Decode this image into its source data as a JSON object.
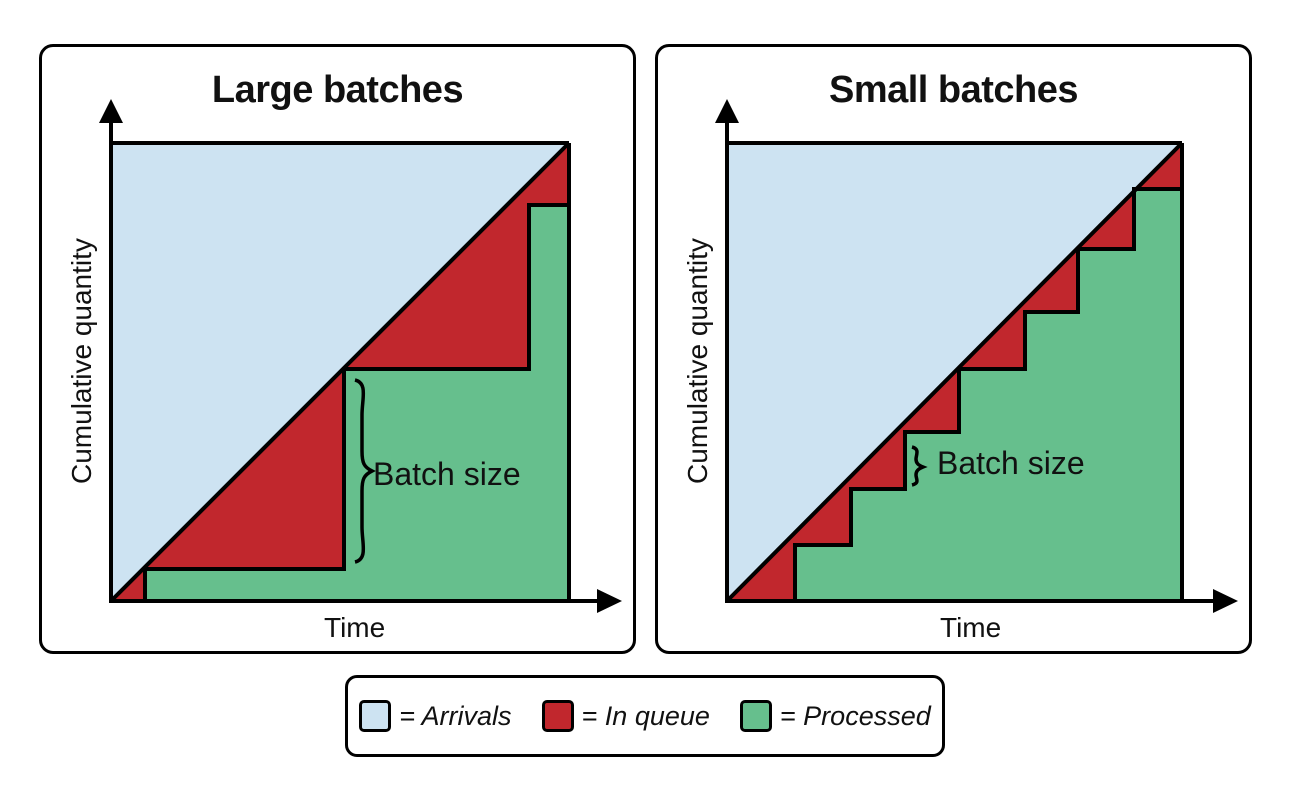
{
  "colors": {
    "arrivals": "#cde3f2",
    "in_queue": "#c1272d",
    "processed": "#66bf8d",
    "stroke": "#000000"
  },
  "panels": {
    "left": {
      "title": "Large batches",
      "xlabel": "Time",
      "ylabel": "Cumulative quantity",
      "annotation": "Batch size"
    },
    "right": {
      "title": "Small batches",
      "xlabel": "Time",
      "ylabel": "Cumulative quantity",
      "annotation": "Batch size"
    }
  },
  "legend": {
    "arrivals": "= Arrivals",
    "in_queue": "= In queue",
    "processed": "= Processed"
  }
}
